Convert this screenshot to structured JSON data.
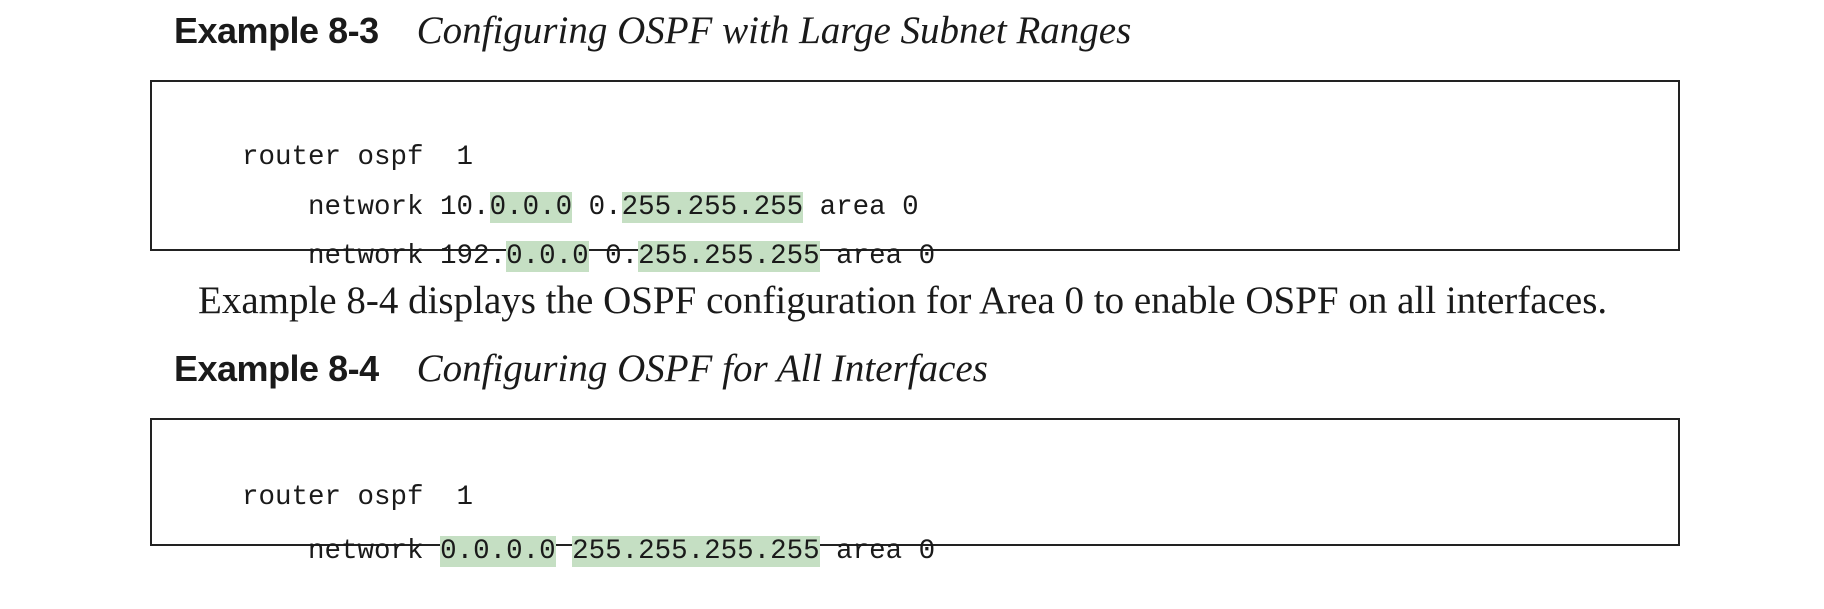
{
  "example_8_3": {
    "label": "Example 8-3",
    "title": "Configuring OSPF with Large Subnet Ranges",
    "lines": [
      {
        "parts": [
          "router ospf  1"
        ]
      },
      {
        "parts": [
          "    network 10.",
          "0.0.0",
          " 0.",
          "255.255.255",
          " area 0"
        ]
      },
      {
        "parts": [
          "    network 192.",
          "0.0.0",
          " 0.",
          "255.255.255",
          " area 0"
        ]
      }
    ]
  },
  "paragraph": "Example 8-4 displays the OSPF configuration for Area 0 to enable OSPF on all interfaces.",
  "example_8_4": {
    "label": "Example 8-4",
    "title": "Configuring OSPF for All Interfaces",
    "lines": [
      {
        "parts": [
          "router ospf  1"
        ]
      },
      {
        "parts": [
          "    network ",
          "0.0.0.0",
          " ",
          "255.255.255.255",
          " area 0"
        ]
      }
    ]
  },
  "highlight_color": "#c5dfc3"
}
